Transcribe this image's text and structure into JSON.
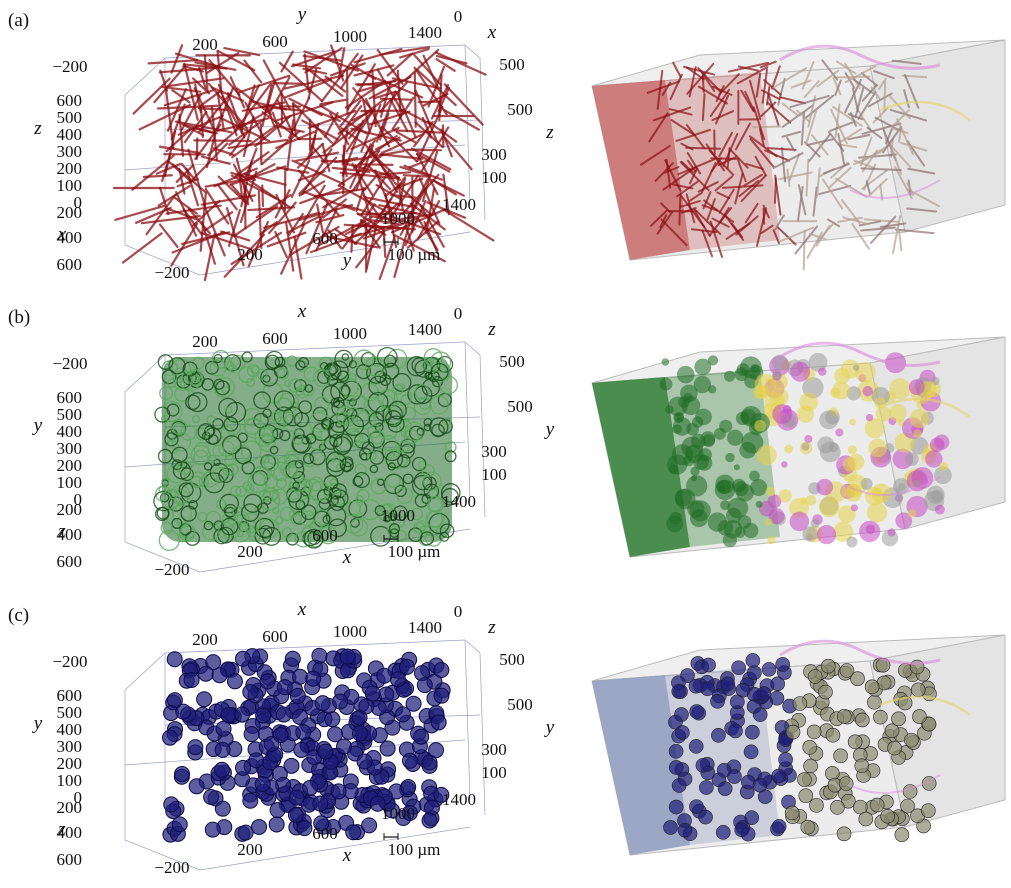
{
  "figure": {
    "panels": [
      {
        "label": "(a)",
        "axes": {
          "top": "y",
          "top_right": "x",
          "right": "z",
          "left": "z",
          "bottom_left": "x",
          "bottom": "y"
        },
        "top_ticks": [
          "200",
          "600",
          "1000",
          "1400",
          "0"
        ],
        "right_ticks": [
          "500",
          "500",
          "300",
          "100"
        ],
        "left_ticks": [
          "−200",
          "600",
          "500",
          "400",
          "300",
          "200",
          "100",
          "0"
        ],
        "front_ticks": [
          "200",
          "400",
          "600"
        ],
        "bottom_ticks": [
          "−200",
          "200",
          "600",
          "1000",
          "1400"
        ],
        "scale_bar": "100 µm",
        "color": "#8b0d12",
        "box_tint": "#c96a6a"
      },
      {
        "label": "(b)",
        "axes": {
          "top": "x",
          "top_right": "z",
          "right": "y",
          "left": "y",
          "bottom_left": "z",
          "bottom": "x"
        },
        "top_ticks": [
          "200",
          "600",
          "1000",
          "1400",
          "0"
        ],
        "right_ticks": [
          "500",
          "500",
          "300",
          "100"
        ],
        "left_ticks": [
          "−200",
          "600",
          "500",
          "400",
          "300",
          "200",
          "100",
          "0"
        ],
        "front_ticks": [
          "200",
          "400",
          "600"
        ],
        "bottom_ticks": [
          "−200",
          "200",
          "600",
          "1000",
          "1400"
        ],
        "scale_bar": "100 µm",
        "color": "#1f6b24",
        "box_tint": "#2f7d32"
      },
      {
        "label": "(c)",
        "axes": {
          "top": "x",
          "top_right": "z",
          "right": "y",
          "left": "y",
          "bottom_left": "z",
          "bottom": "x"
        },
        "top_ticks": [
          "200",
          "600",
          "1000",
          "1400",
          "0"
        ],
        "right_ticks": [
          "500",
          "500",
          "300",
          "100"
        ],
        "left_ticks": [
          "−200",
          "600",
          "500",
          "400",
          "300",
          "200",
          "100",
          "0"
        ],
        "front_ticks": [
          "200",
          "400",
          "600"
        ],
        "bottom_ticks": [
          "−200",
          "200",
          "600",
          "1000",
          "1400"
        ],
        "scale_bar": "100 µm",
        "color": "#1f1f7a",
        "box_tint": "#8e9bc0"
      }
    ]
  }
}
